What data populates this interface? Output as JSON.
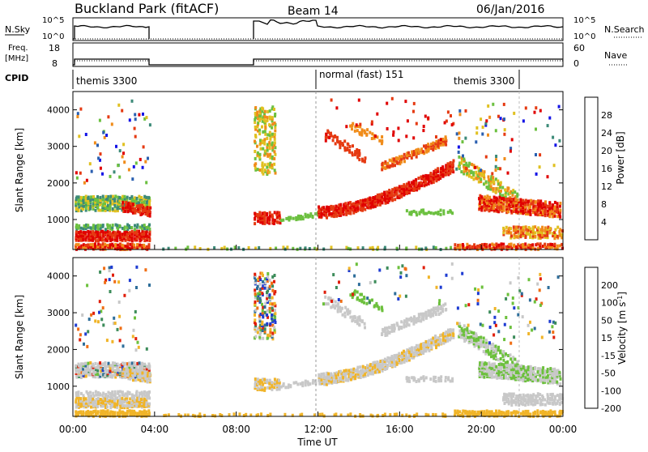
{
  "header": {
    "station": "Buckland Park (fitACF)",
    "beam": "Beam 14",
    "date": "06/Jan/2016"
  },
  "panels": {
    "nsky": {
      "label_left": "N.Sky",
      "tick_hi": "10^5",
      "tick_lo": "10^0",
      "label_right": "N.Search",
      "right_tick_hi": "10^5",
      "right_tick_lo": "10^0"
    },
    "freq": {
      "label_left_1": "Freq.",
      "label_left_2": "[MHz]",
      "tick_hi": "18",
      "tick_lo": "8",
      "label_right": "Nave",
      "right_tick_hi": "60",
      "right_tick_lo": "0"
    },
    "cpid": {
      "label_left": "CPID",
      "modes": [
        "themis 3300",
        "normal (fast) 151",
        "themis 3300"
      ]
    }
  },
  "chart_data": [
    {
      "type": "heatmap",
      "name": "power",
      "ylabel": "Slant Range [km]",
      "yticks": [
        "1000",
        "2000",
        "3000",
        "4000"
      ],
      "ylim": [
        180,
        4500
      ],
      "colorbar_label": "Power [dB]",
      "colorbar_ticks": [
        "4",
        "8",
        "12",
        "16",
        "20",
        "24",
        "28"
      ],
      "colors": [
        "#1414e6",
        "#2a5fb0",
        "#3c8a78",
        "#6cc040",
        "#e0c020",
        "#f08c1a",
        "#e53a12",
        "#e00000"
      ]
    },
    {
      "type": "heatmap",
      "name": "velocity",
      "ylabel": "Slant Range [km]",
      "yticks": [
        "1000",
        "2000",
        "3000",
        "4000"
      ],
      "ylim": [
        180,
        4500
      ],
      "colorbar_label": "Velocity [m s^-1]",
      "colorbar_ticks": [
        "200",
        "100",
        "50",
        "15",
        "-15",
        "-50",
        "-100",
        "-200"
      ],
      "colors": [
        "#1e3cd2",
        "#2e6e9a",
        "#3c8c5a",
        "#6cc03c",
        "#c8c8c8",
        "#f0b428",
        "#f06e14",
        "#e01e0a"
      ]
    }
  ],
  "xaxis": {
    "label": "Time UT",
    "ticks": [
      "00:00",
      "04:00",
      "08:00",
      "12:00",
      "16:00",
      "20:00",
      "00:00"
    ]
  }
}
